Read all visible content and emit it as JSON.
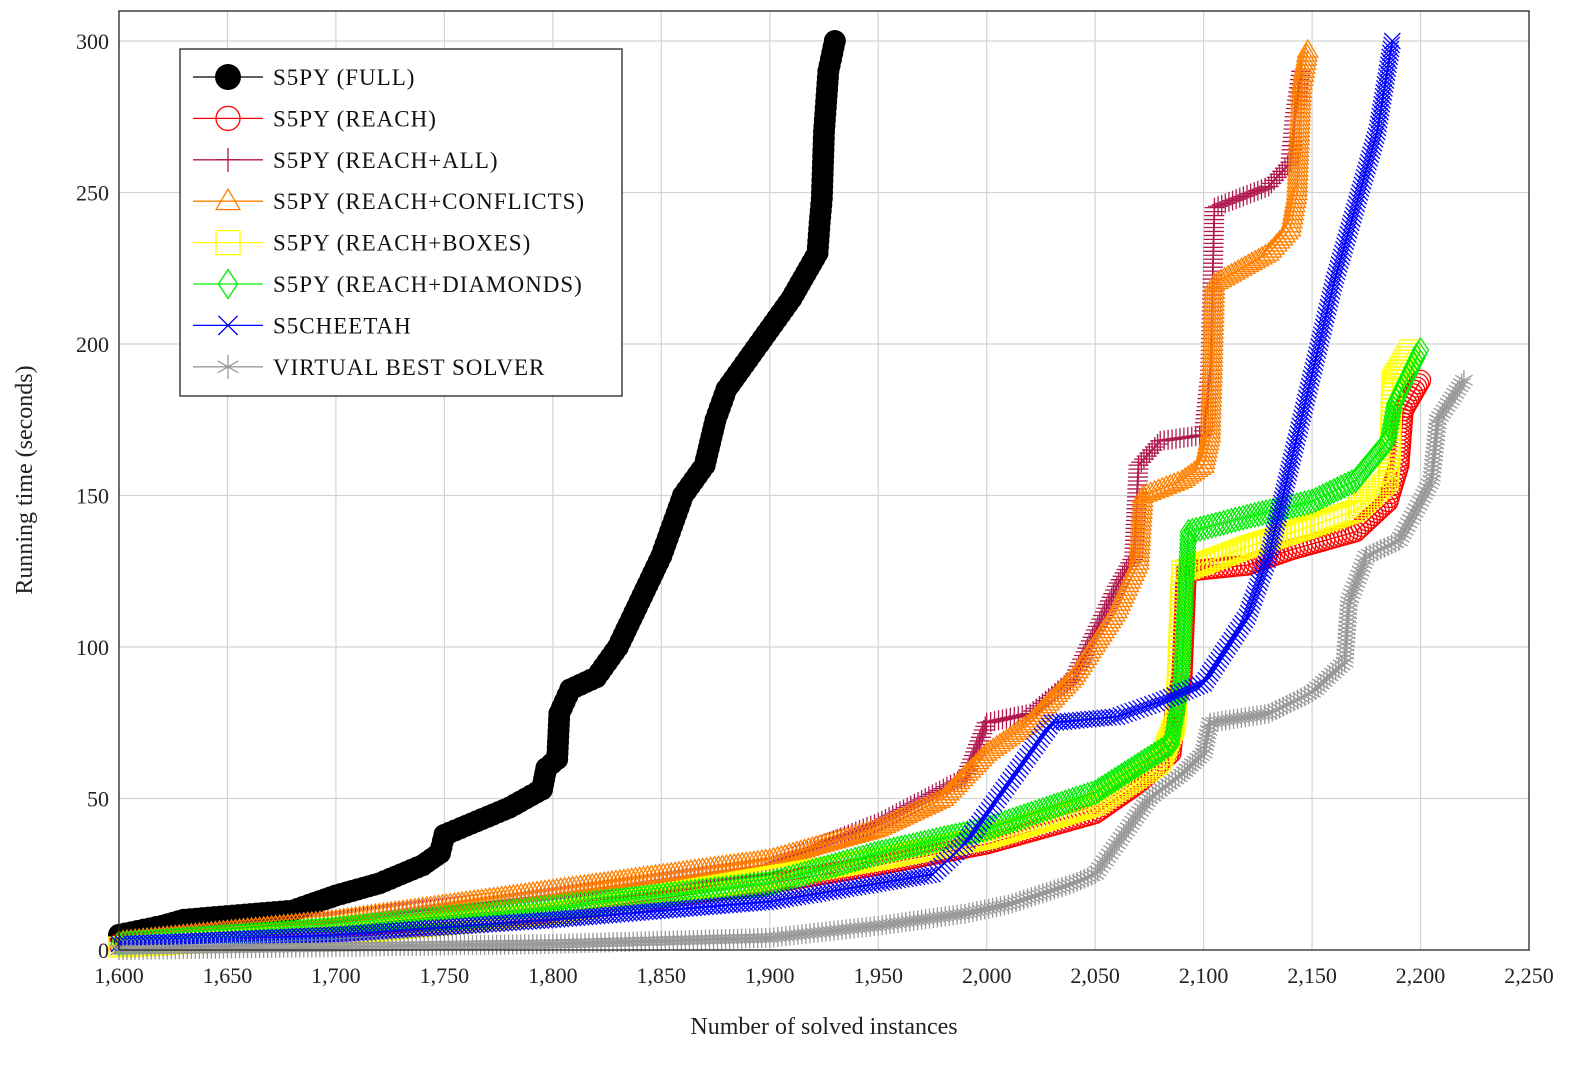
{
  "chart_data": {
    "type": "line",
    "title": "",
    "xlabel": "Number of solved instances",
    "ylabel": "Running time (seconds)",
    "xlim": [
      1600,
      2250
    ],
    "ylim": [
      0,
      310
    ],
    "xticks": [
      "1,600",
      "1,650",
      "1,700",
      "1,750",
      "1,800",
      "1,850",
      "1,900",
      "1,950",
      "2,000",
      "2,050",
      "2,100",
      "2,150",
      "2,200",
      "2,250"
    ],
    "xtick_values": [
      1600,
      1650,
      1700,
      1750,
      1800,
      1850,
      1900,
      1950,
      2000,
      2050,
      2100,
      2150,
      2200,
      2250
    ],
    "yticks": [
      "0",
      "50",
      "100",
      "150",
      "200",
      "250",
      "300"
    ],
    "ytick_values": [
      0,
      50,
      100,
      150,
      200,
      250,
      300
    ],
    "grid": true,
    "legend_position": "top-left",
    "series": [
      {
        "name": "S5PY (FULL)",
        "color": "#000000",
        "marker": "filled-circle",
        "points": [
          [
            1600,
            5
          ],
          [
            1620,
            8
          ],
          [
            1630,
            10
          ],
          [
            1680,
            13
          ],
          [
            1700,
            18
          ],
          [
            1720,
            22
          ],
          [
            1740,
            28
          ],
          [
            1748,
            32
          ],
          [
            1750,
            38
          ],
          [
            1780,
            47
          ],
          [
            1795,
            53
          ],
          [
            1797,
            60
          ],
          [
            1802,
            63
          ],
          [
            1803,
            78
          ],
          [
            1808,
            86
          ],
          [
            1820,
            90
          ],
          [
            1830,
            100
          ],
          [
            1840,
            115
          ],
          [
            1850,
            130
          ],
          [
            1855,
            140
          ],
          [
            1860,
            150
          ],
          [
            1870,
            160
          ],
          [
            1875,
            175
          ],
          [
            1880,
            185
          ],
          [
            1890,
            195
          ],
          [
            1900,
            205
          ],
          [
            1910,
            215
          ],
          [
            1918,
            225
          ],
          [
            1922,
            230
          ],
          [
            1923,
            240
          ],
          [
            1924,
            248
          ],
          [
            1925,
            270
          ],
          [
            1927,
            290
          ],
          [
            1930,
            300
          ]
        ]
      },
      {
        "name": "S5PY (REACH)",
        "color": "#ff0000",
        "marker": "circle",
        "points": [
          [
            1600,
            2
          ],
          [
            1700,
            6
          ],
          [
            1800,
            12
          ],
          [
            1900,
            22
          ],
          [
            1950,
            28
          ],
          [
            2000,
            35
          ],
          [
            2050,
            45
          ],
          [
            2070,
            55
          ],
          [
            2085,
            65
          ],
          [
            2087,
            80
          ],
          [
            2090,
            90
          ],
          [
            2092,
            125
          ],
          [
            2120,
            127
          ],
          [
            2140,
            132
          ],
          [
            2170,
            138
          ],
          [
            2185,
            148
          ],
          [
            2190,
            160
          ],
          [
            2192,
            178
          ],
          [
            2200,
            188
          ]
        ]
      },
      {
        "name": "S5PY (REACH+ALL)",
        "color": "#b0184f",
        "marker": "plus",
        "points": [
          [
            1600,
            3
          ],
          [
            1700,
            10
          ],
          [
            1800,
            18
          ],
          [
            1900,
            28
          ],
          [
            1950,
            42
          ],
          [
            1990,
            57
          ],
          [
            2000,
            75
          ],
          [
            2020,
            78
          ],
          [
            2040,
            90
          ],
          [
            2060,
            120
          ],
          [
            2068,
            130
          ],
          [
            2070,
            160
          ],
          [
            2080,
            168
          ],
          [
            2100,
            170
          ],
          [
            2103,
            190
          ],
          [
            2105,
            245
          ],
          [
            2130,
            252
          ],
          [
            2140,
            260
          ],
          [
            2142,
            275
          ],
          [
            2145,
            290
          ]
        ]
      },
      {
        "name": "S5PY (REACH+CONFLICTS)",
        "color": "#ff8000",
        "marker": "triangle",
        "points": [
          [
            1600,
            3
          ],
          [
            1700,
            10
          ],
          [
            1800,
            20
          ],
          [
            1900,
            30
          ],
          [
            1950,
            40
          ],
          [
            1980,
            50
          ],
          [
            2000,
            65
          ],
          [
            2020,
            75
          ],
          [
            2040,
            90
          ],
          [
            2060,
            112
          ],
          [
            2070,
            128
          ],
          [
            2072,
            150
          ],
          [
            2090,
            155
          ],
          [
            2100,
            160
          ],
          [
            2103,
            170
          ],
          [
            2105,
            220
          ],
          [
            2130,
            230
          ],
          [
            2140,
            238
          ],
          [
            2143,
            250
          ],
          [
            2145,
            285
          ],
          [
            2148,
            297
          ]
        ]
      },
      {
        "name": "S5PY (REACH+BOXES)",
        "color": "#ffff00",
        "marker": "square",
        "points": [
          [
            1600,
            1
          ],
          [
            1700,
            5
          ],
          [
            1800,
            12
          ],
          [
            1900,
            24
          ],
          [
            1950,
            30
          ],
          [
            2000,
            37
          ],
          [
            2050,
            48
          ],
          [
            2080,
            62
          ],
          [
            2087,
            75
          ],
          [
            2088,
            90
          ],
          [
            2090,
            125
          ],
          [
            2120,
            133
          ],
          [
            2150,
            140
          ],
          [
            2170,
            145
          ],
          [
            2185,
            155
          ],
          [
            2186,
            165
          ],
          [
            2187,
            188
          ],
          [
            2195,
            198
          ]
        ]
      },
      {
        "name": "S5PY (REACH+DIAMONDS)",
        "color": "#00ee00",
        "marker": "diamond",
        "points": [
          [
            1600,
            2
          ],
          [
            1700,
            7
          ],
          [
            1800,
            14
          ],
          [
            1900,
            22
          ],
          [
            1950,
            32
          ],
          [
            2000,
            40
          ],
          [
            2050,
            52
          ],
          [
            2085,
            68
          ],
          [
            2088,
            80
          ],
          [
            2090,
            92
          ],
          [
            2093,
            138
          ],
          [
            2120,
            143
          ],
          [
            2150,
            148
          ],
          [
            2170,
            155
          ],
          [
            2185,
            168
          ],
          [
            2188,
            180
          ],
          [
            2200,
            198
          ]
        ]
      },
      {
        "name": "S5CHEETAH",
        "color": "#0000ff",
        "marker": "x",
        "points": [
          [
            1600,
            2
          ],
          [
            1700,
            5
          ],
          [
            1800,
            10
          ],
          [
            1900,
            16
          ],
          [
            1950,
            22
          ],
          [
            1975,
            25
          ],
          [
            1990,
            35
          ],
          [
            2000,
            45
          ],
          [
            2010,
            55
          ],
          [
            2020,
            65
          ],
          [
            2030,
            75
          ],
          [
            2060,
            77
          ],
          [
            2080,
            82
          ],
          [
            2100,
            88
          ],
          [
            2120,
            110
          ],
          [
            2130,
            130
          ],
          [
            2135,
            145
          ],
          [
            2140,
            160
          ],
          [
            2150,
            190
          ],
          [
            2160,
            220
          ],
          [
            2170,
            245
          ],
          [
            2180,
            270
          ],
          [
            2187,
            300
          ]
        ]
      },
      {
        "name": "VIRTUAL BEST SOLVER",
        "color": "#999999",
        "marker": "star",
        "points": [
          [
            1600,
            0
          ],
          [
            1700,
            1
          ],
          [
            1800,
            2
          ],
          [
            1900,
            4
          ],
          [
            1950,
            8
          ],
          [
            1990,
            12
          ],
          [
            2010,
            15
          ],
          [
            2040,
            22
          ],
          [
            2050,
            25
          ],
          [
            2060,
            35
          ],
          [
            2075,
            50
          ],
          [
            2090,
            58
          ],
          [
            2100,
            65
          ],
          [
            2103,
            75
          ],
          [
            2130,
            78
          ],
          [
            2150,
            85
          ],
          [
            2165,
            95
          ],
          [
            2167,
            115
          ],
          [
            2175,
            130
          ],
          [
            2190,
            135
          ],
          [
            2200,
            148
          ],
          [
            2205,
            155
          ],
          [
            2208,
            175
          ],
          [
            2220,
            188
          ]
        ]
      }
    ]
  }
}
